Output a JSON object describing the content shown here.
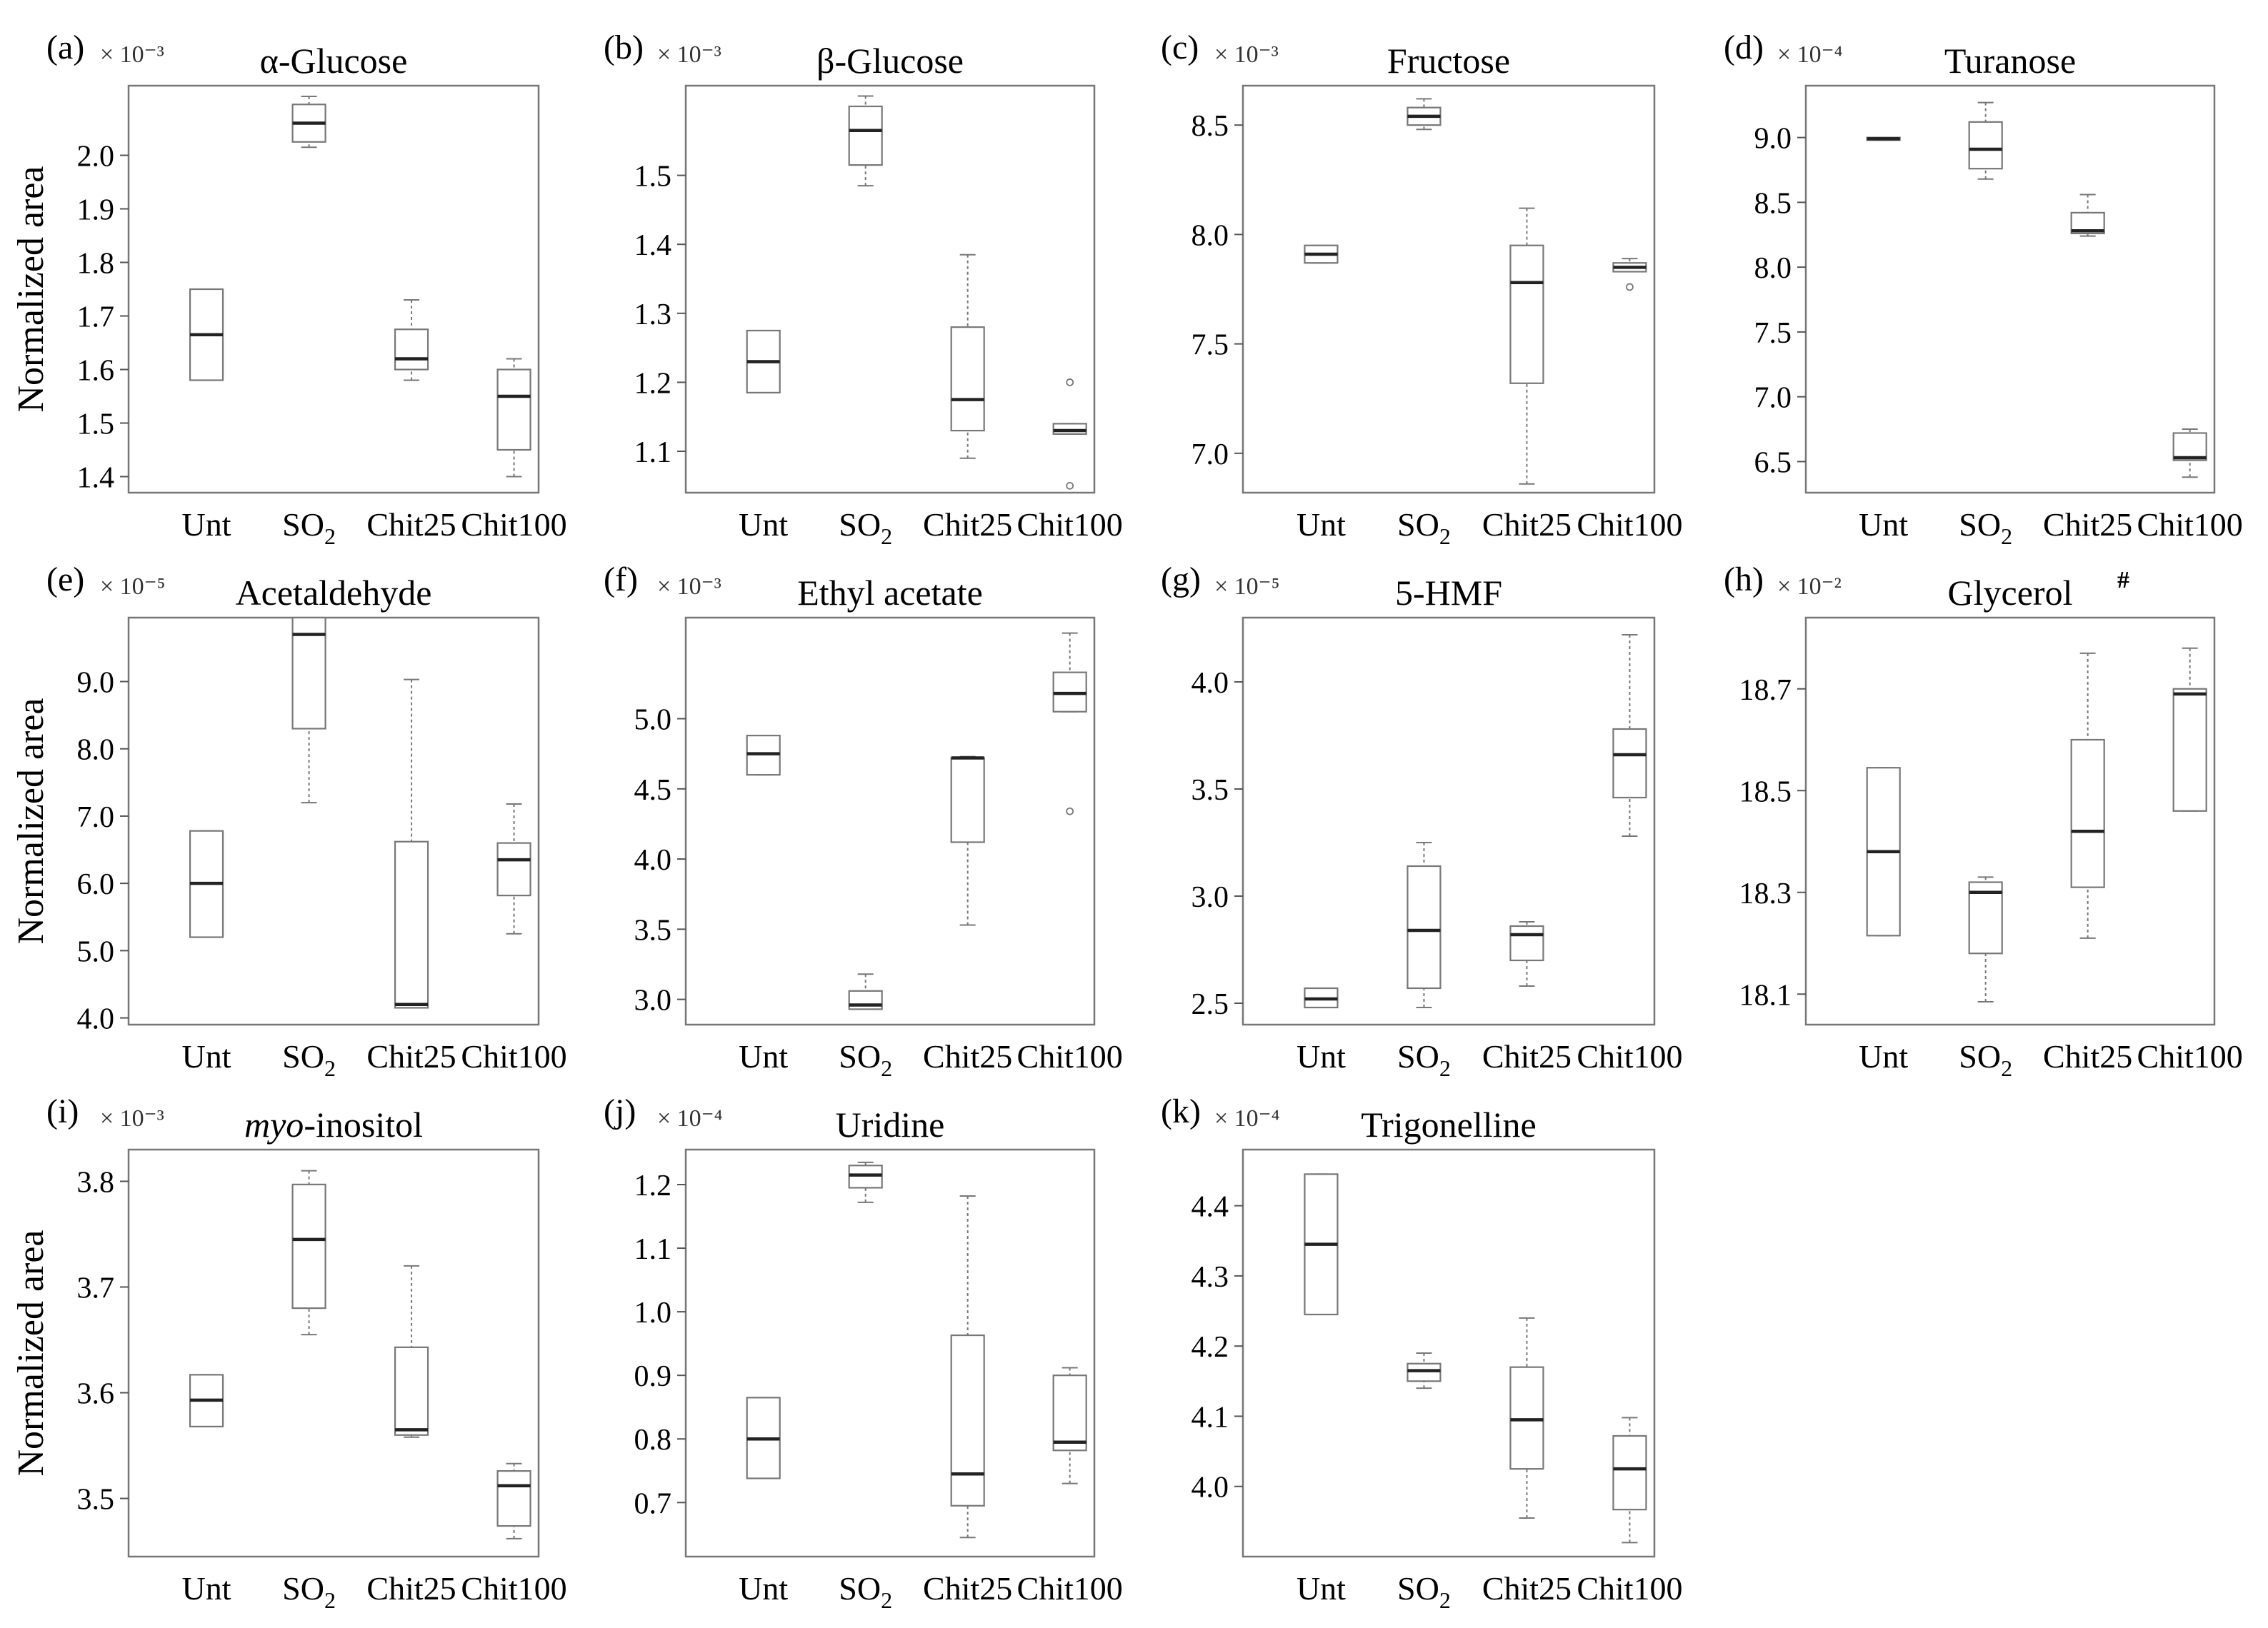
{
  "chart_data": [
    {
      "panel": "(a)",
      "type": "box",
      "title": "α-Glucose",
      "multiplier": "× 10⁻³",
      "ylabel": "Normalized area",
      "categories": [
        "Unt",
        "SO₂",
        "Chit25",
        "Chit100"
      ],
      "yticks": [
        "1.4",
        "1.5",
        "1.6",
        "1.7",
        "1.8",
        "1.9",
        "2.0"
      ],
      "ylim": [
        1.37,
        2.13
      ],
      "boxes": [
        {
          "min": 1.58,
          "q1": 1.58,
          "median": 1.665,
          "q3": 1.75,
          "max": 1.75,
          "outliers": []
        },
        {
          "min": 2.015,
          "q1": 2.025,
          "median": 2.06,
          "q3": 2.095,
          "max": 2.11,
          "outliers": []
        },
        {
          "min": 1.58,
          "q1": 1.6,
          "median": 1.62,
          "q3": 1.675,
          "max": 1.73,
          "outliers": []
        },
        {
          "min": 1.4,
          "q1": 1.45,
          "median": 1.55,
          "q3": 1.6,
          "max": 1.62,
          "outliers": []
        }
      ]
    },
    {
      "panel": "(b)",
      "type": "box",
      "title": "β-Glucose",
      "multiplier": "× 10⁻³",
      "ylabel": "",
      "categories": [
        "Unt",
        "SO₂",
        "Chit25",
        "Chit100"
      ],
      "yticks": [
        "1.1",
        "1.2",
        "1.3",
        "1.4",
        "1.5"
      ],
      "ylim": [
        1.04,
        1.63
      ],
      "boxes": [
        {
          "min": 1.185,
          "q1": 1.185,
          "median": 1.23,
          "q3": 1.275,
          "max": 1.275,
          "outliers": []
        },
        {
          "min": 1.485,
          "q1": 1.515,
          "median": 1.565,
          "q3": 1.6,
          "max": 1.615,
          "outliers": []
        },
        {
          "min": 1.09,
          "q1": 1.13,
          "median": 1.175,
          "q3": 1.28,
          "max": 1.385,
          "outliers": []
        },
        {
          "min": 1.125,
          "q1": 1.125,
          "median": 1.13,
          "q3": 1.14,
          "max": 1.14,
          "outliers": [
            1.2,
            1.05
          ]
        }
      ]
    },
    {
      "panel": "(c)",
      "type": "box",
      "title": "Fructose",
      "multiplier": "× 10⁻³",
      "ylabel": "",
      "categories": [
        "Unt",
        "SO₂",
        "Chit25",
        "Chit100"
      ],
      "yticks": [
        "7.0",
        "7.5",
        "8.0",
        "8.5"
      ],
      "ylim": [
        6.82,
        8.68
      ],
      "boxes": [
        {
          "min": 7.87,
          "q1": 7.87,
          "median": 7.91,
          "q3": 7.95,
          "max": 7.95,
          "outliers": []
        },
        {
          "min": 8.48,
          "q1": 8.5,
          "median": 8.54,
          "q3": 8.58,
          "max": 8.62,
          "outliers": []
        },
        {
          "min": 6.86,
          "q1": 7.32,
          "median": 7.78,
          "q3": 7.95,
          "max": 8.12,
          "outliers": []
        },
        {
          "min": 7.83,
          "q1": 7.83,
          "median": 7.85,
          "q3": 7.87,
          "max": 7.89,
          "outliers": [
            7.76
          ]
        }
      ]
    },
    {
      "panel": "(d)",
      "type": "box",
      "title": "Turanose",
      "multiplier": "× 10⁻⁴",
      "ylabel": "",
      "categories": [
        "Unt",
        "SO₂",
        "Chit25",
        "Chit100"
      ],
      "yticks": [
        "6.5",
        "7.0",
        "7.5",
        "8.0",
        "8.5",
        "9.0"
      ],
      "ylim": [
        6.26,
        9.4
      ],
      "boxes": [
        {
          "min": 8.98,
          "q1": 8.98,
          "median": 8.99,
          "q3": 9.0,
          "max": 9.0,
          "outliers": []
        },
        {
          "min": 8.68,
          "q1": 8.76,
          "median": 8.91,
          "q3": 9.12,
          "max": 9.27,
          "outliers": []
        },
        {
          "min": 8.24,
          "q1": 8.26,
          "median": 8.28,
          "q3": 8.42,
          "max": 8.56,
          "outliers": []
        },
        {
          "min": 6.38,
          "q1": 6.51,
          "median": 6.53,
          "q3": 6.72,
          "max": 6.75,
          "outliers": []
        }
      ]
    },
    {
      "panel": "(e)",
      "type": "box",
      "title": "Acetaldehyde",
      "multiplier": "× 10⁻⁵",
      "ylabel": "Normalized area",
      "categories": [
        "Unt",
        "SO₂",
        "Chit25",
        "Chit100"
      ],
      "yticks": [
        "4.0",
        "5.0",
        "6.0",
        "7.0",
        "8.0",
        "9.0"
      ],
      "ylim": [
        3.9,
        9.95
      ],
      "boxes": [
        {
          "min": 5.2,
          "q1": 5.2,
          "median": 6.0,
          "q3": 6.78,
          "max": 6.78,
          "outliers": []
        },
        {
          "min": 7.2,
          "q1": 8.3,
          "median": 9.7,
          "q3": 9.95,
          "max": 9.95,
          "outliers": []
        },
        {
          "min": 4.15,
          "q1": 4.15,
          "median": 4.2,
          "q3": 6.62,
          "max": 9.03,
          "outliers": []
        },
        {
          "min": 5.25,
          "q1": 5.82,
          "median": 6.35,
          "q3": 6.6,
          "max": 7.18,
          "outliers": []
        }
      ]
    },
    {
      "panel": "(f)",
      "type": "box",
      "title": "Ethyl acetate",
      "multiplier": "× 10⁻³",
      "ylabel": "",
      "categories": [
        "Unt",
        "SO₂",
        "Chit25",
        "Chit100"
      ],
      "yticks": [
        "3.0",
        "3.5",
        "4.0",
        "4.5",
        "5.0"
      ],
      "ylim": [
        2.82,
        5.72
      ],
      "boxes": [
        {
          "min": 4.6,
          "q1": 4.6,
          "median": 4.75,
          "q3": 4.88,
          "max": 4.88,
          "outliers": []
        },
        {
          "min": 2.93,
          "q1": 2.93,
          "median": 2.96,
          "q3": 3.06,
          "max": 3.18,
          "outliers": []
        },
        {
          "min": 3.53,
          "q1": 4.12,
          "median": 4.72,
          "q3": 4.72,
          "max": 4.73,
          "outliers": []
        },
        {
          "min": 5.05,
          "q1": 5.05,
          "median": 5.18,
          "q3": 5.33,
          "max": 5.61,
          "outliers": [
            4.34
          ]
        }
      ]
    },
    {
      "panel": "(g)",
      "type": "box",
      "title": "5-HMF",
      "multiplier": "× 10⁻⁵",
      "ylabel": "",
      "categories": [
        "Unt",
        "SO₂",
        "Chit25",
        "Chit100"
      ],
      "yticks": [
        "2.5",
        "3.0",
        "3.5",
        "4.0"
      ],
      "ylim": [
        2.4,
        4.3
      ],
      "boxes": [
        {
          "min": 2.48,
          "q1": 2.48,
          "median": 2.52,
          "q3": 2.57,
          "max": 2.57,
          "outliers": []
        },
        {
          "min": 2.48,
          "q1": 2.57,
          "median": 2.84,
          "q3": 3.14,
          "max": 3.25,
          "outliers": []
        },
        {
          "min": 2.58,
          "q1": 2.7,
          "median": 2.82,
          "q3": 2.86,
          "max": 2.88,
          "outliers": []
        },
        {
          "min": 3.28,
          "q1": 3.46,
          "median": 3.66,
          "q3": 3.78,
          "max": 4.22,
          "outliers": []
        }
      ]
    },
    {
      "panel": "(h)",
      "type": "box",
      "title": "Glycerol",
      "title_mark": "#",
      "multiplier": "× 10⁻²",
      "ylabel": "",
      "categories": [
        "Unt",
        "SO₂",
        "Chit25",
        "Chit100"
      ],
      "yticks": [
        "18.1",
        "18.3",
        "18.5",
        "18.7"
      ],
      "ylim": [
        18.04,
        18.84
      ],
      "boxes": [
        {
          "min": 18.215,
          "q1": 18.215,
          "median": 18.38,
          "q3": 18.545,
          "max": 18.545,
          "outliers": []
        },
        {
          "min": 18.085,
          "q1": 18.18,
          "median": 18.3,
          "q3": 18.32,
          "max": 18.33,
          "outliers": []
        },
        {
          "min": 18.21,
          "q1": 18.31,
          "median": 18.42,
          "q3": 18.6,
          "max": 18.77,
          "outliers": []
        },
        {
          "min": 18.46,
          "q1": 18.46,
          "median": 18.69,
          "q3": 18.7,
          "max": 18.78,
          "outliers": []
        }
      ]
    },
    {
      "panel": "(i)",
      "type": "box",
      "title": "myo-inositol",
      "title_italic": "myo",
      "title_rest": "-inositol",
      "multiplier": "× 10⁻³",
      "ylabel": "Normalized area",
      "categories": [
        "Unt",
        "SO₂",
        "Chit25",
        "Chit100"
      ],
      "yticks": [
        "3.5",
        "3.6",
        "3.7",
        "3.8"
      ],
      "ylim": [
        3.445,
        3.83
      ],
      "boxes": [
        {
          "min": 3.568,
          "q1": 3.568,
          "median": 3.593,
          "q3": 3.617,
          "max": 3.617,
          "outliers": []
        },
        {
          "min": 3.655,
          "q1": 3.68,
          "median": 3.745,
          "q3": 3.797,
          "max": 3.81,
          "outliers": []
        },
        {
          "min": 3.558,
          "q1": 3.56,
          "median": 3.565,
          "q3": 3.643,
          "max": 3.72,
          "outliers": []
        },
        {
          "min": 3.462,
          "q1": 3.474,
          "median": 3.512,
          "q3": 3.526,
          "max": 3.533,
          "outliers": []
        }
      ]
    },
    {
      "panel": "(j)",
      "type": "box",
      "title": "Uridine",
      "multiplier": "× 10⁻⁴",
      "ylabel": "",
      "categories": [
        "Unt",
        "SO₂",
        "Chit25",
        "Chit100"
      ],
      "yticks": [
        "0.7",
        "0.8",
        "0.9",
        "1.0",
        "1.1",
        "1.2"
      ],
      "ylim": [
        0.615,
        1.255
      ],
      "boxes": [
        {
          "min": 0.738,
          "q1": 0.738,
          "median": 0.8,
          "q3": 0.865,
          "max": 0.865,
          "outliers": []
        },
        {
          "min": 1.172,
          "q1": 1.195,
          "median": 1.215,
          "q3": 1.23,
          "max": 1.235,
          "outliers": []
        },
        {
          "min": 0.645,
          "q1": 0.695,
          "median": 0.745,
          "q3": 0.963,
          "max": 1.182,
          "outliers": []
        },
        {
          "min": 0.73,
          "q1": 0.782,
          "median": 0.795,
          "q3": 0.9,
          "max": 0.912,
          "outliers": []
        }
      ]
    },
    {
      "panel": "(k)",
      "type": "box",
      "title": "Trigonelline",
      "multiplier": "× 10⁻⁴",
      "ylabel": "",
      "categories": [
        "Unt",
        "SO₂",
        "Chit25",
        "Chit100"
      ],
      "yticks": [
        "4.0",
        "4.1",
        "4.2",
        "4.3",
        "4.4"
      ],
      "ylim": [
        3.9,
        4.48
      ],
      "boxes": [
        {
          "min": 4.245,
          "q1": 4.245,
          "median": 4.345,
          "q3": 4.445,
          "max": 4.445,
          "outliers": []
        },
        {
          "min": 4.14,
          "q1": 4.15,
          "median": 4.165,
          "q3": 4.175,
          "max": 4.19,
          "outliers": []
        },
        {
          "min": 3.955,
          "q1": 4.025,
          "median": 4.095,
          "q3": 4.17,
          "max": 4.24,
          "outliers": []
        },
        {
          "min": 3.92,
          "q1": 3.967,
          "median": 4.025,
          "q3": 4.072,
          "max": 4.098,
          "outliers": []
        }
      ]
    }
  ]
}
